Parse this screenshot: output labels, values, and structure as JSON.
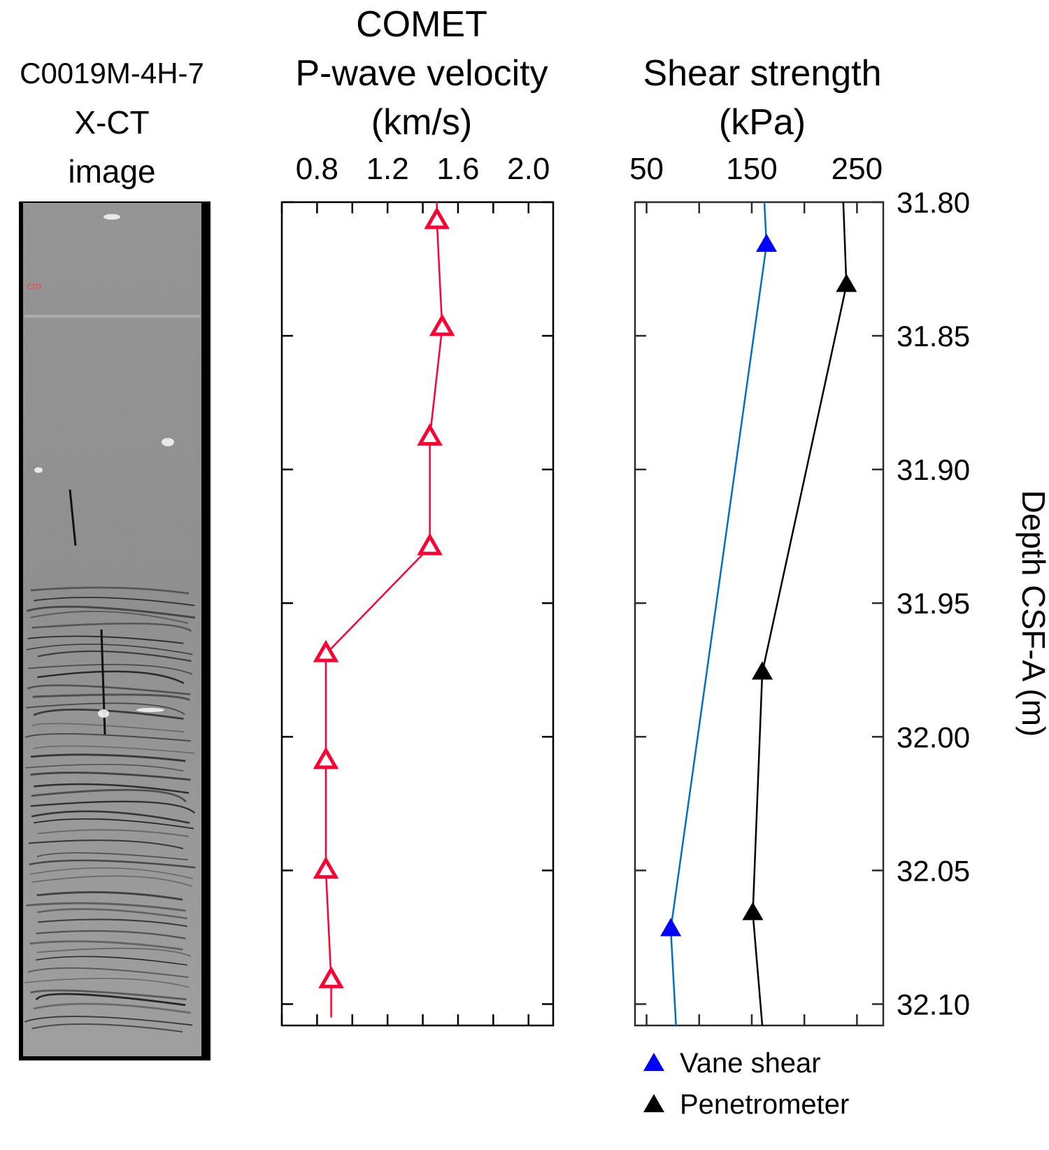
{
  "ct_panel": {
    "title_lines": [
      "C0019M-4H-7",
      "X-CT",
      "image"
    ],
    "scale_marker_text": "cm",
    "scale_marker_color": "#e05050"
  },
  "chart_data": [
    {
      "type": "line",
      "panel": "p-wave-velocity",
      "title_lines": [
        "COMET",
        "P-wave velocity",
        "(km/s)"
      ],
      "xlabel": "P-wave velocity (km/s)",
      "ylabel": "Depth CSF-A (m)",
      "x_ticks": [
        0.8,
        1.2,
        1.6,
        2.0
      ],
      "x_tick_labels": [
        "0.8",
        "1.2",
        "1.6",
        "2.0"
      ],
      "x_minor_step": 0.2,
      "xlim": [
        0.6,
        2.14
      ],
      "ylim": [
        31.8,
        32.108
      ],
      "y_inverted": true,
      "x_axis_position": "top",
      "series": [
        {
          "name": "COMET P-wave velocity",
          "color": "#ff0033",
          "marker": "open-triangle",
          "line_start": {
            "x": 1.48,
            "depth": 31.8
          },
          "line_end": {
            "x": 0.88,
            "depth": 32.105
          },
          "points": [
            {
              "x": 1.48,
              "depth": 31.807
            },
            {
              "x": 1.51,
              "depth": 31.847
            },
            {
              "x": 1.44,
              "depth": 31.888
            },
            {
              "x": 1.44,
              "depth": 31.929
            },
            {
              "x": 0.85,
              "depth": 31.969
            },
            {
              "x": 0.85,
              "depth": 32.009
            },
            {
              "x": 0.85,
              "depth": 32.05
            },
            {
              "x": 0.88,
              "depth": 32.091
            }
          ]
        }
      ]
    },
    {
      "type": "line",
      "panel": "shear-strength",
      "title_lines": [
        "Shear strength",
        "(kPa)"
      ],
      "xlabel": "Shear strength (kPa)",
      "ylabel": "Depth CSF-A (m)",
      "x_ticks": [
        50,
        150,
        250
      ],
      "x_tick_labels": [
        "50",
        "150",
        "250"
      ],
      "x_minor_step": 50,
      "xlim": [
        39,
        275
      ],
      "ylim": [
        31.8,
        32.108
      ],
      "y_inverted": true,
      "x_axis_position": "top",
      "y_ticks": [
        31.8,
        31.85,
        31.9,
        31.95,
        32.0,
        32.05,
        32.1
      ],
      "y_tick_labels": [
        "31.80",
        "31.85",
        "31.90",
        "31.95",
        "32.00",
        "32.05",
        "32.10"
      ],
      "y_axis_position": "right",
      "series": [
        {
          "name": "Vane shear",
          "line_color": "#0070c0",
          "marker_color": "#0000ff",
          "marker": "filled-triangle",
          "line_start": {
            "x": 162,
            "depth": 31.8
          },
          "line_end": {
            "x": 78,
            "depth": 32.108
          },
          "points": [
            {
              "x": 164,
              "depth": 31.816
            },
            {
              "x": 73,
              "depth": 32.072
            }
          ]
        },
        {
          "name": "Penetrometer",
          "line_color": "#000000",
          "marker_color": "#000000",
          "marker": "filled-triangle",
          "line_start": {
            "x": 237,
            "depth": 31.8
          },
          "line_end": {
            "x": 160,
            "depth": 32.108
          },
          "points": [
            {
              "x": 240,
              "depth": 31.831
            },
            {
              "x": 160,
              "depth": 31.976
            },
            {
              "x": 151,
              "depth": 32.066
            }
          ]
        }
      ],
      "legend": {
        "placement": "bottom",
        "entries": [
          {
            "label": "Vane shear",
            "color": "#0000ff"
          },
          {
            "label": "Penetrometer",
            "color": "#000000"
          }
        ]
      }
    }
  ]
}
